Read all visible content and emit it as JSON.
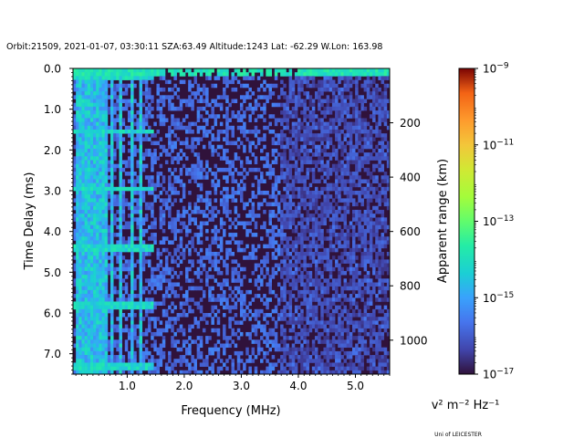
{
  "chart_data": {
    "type": "heatmap",
    "title": "Orbit:21509, 2021-01-07, 03:30:11 SZA:63.49 Altitude:1243 Lat: -62.29 W.Lon: 163.98",
    "xlabel": "Frequency (MHz)",
    "ylabel": "Time Delay (ms)",
    "y2label": "Apparent range (km)",
    "xlim": [
      0.05,
      5.6
    ],
    "ylim": [
      7.5,
      0.0
    ],
    "y2lim": [
      0,
      1125
    ],
    "x_ticks": [
      "1.0",
      "2.0",
      "3.0",
      "4.0",
      "5.0"
    ],
    "x_tick_values": [
      1.0,
      2.0,
      3.0,
      4.0,
      5.0
    ],
    "y_ticks": [
      "0.0",
      "1.0",
      "2.0",
      "3.0",
      "4.0",
      "5.0",
      "6.0",
      "7.0"
    ],
    "y_tick_values": [
      0.0,
      1.0,
      2.0,
      3.0,
      4.0,
      5.0,
      6.0,
      7.0
    ],
    "y2_ticks": [
      "200",
      "400",
      "600",
      "800",
      "1000"
    ],
    "y2_tick_values": [
      200,
      400,
      600,
      800,
      1000
    ],
    "colorbar": {
      "scale": "log",
      "range": [
        1e-17,
        1e-09
      ],
      "tick_exponents": [
        -17,
        -15,
        -13,
        -11,
        -9
      ],
      "tick_base": "10",
      "units_label": "v² m⁻² Hz⁻¹",
      "colormap": "turbo"
    },
    "heatmap_summary": {
      "background_value": 1e-17,
      "bright_frequencies_mhz": [
        0.15,
        0.25,
        0.35,
        0.45,
        0.55,
        0.65,
        0.75,
        0.9,
        1.1,
        1.25
      ],
      "bright_delays_ms": [
        0.2,
        1.55,
        2.95,
        4.4,
        5.85,
        7.3
      ],
      "ground_echo_delay_ms": 0.15
    }
  },
  "credit": "Uni of LEICESTER"
}
